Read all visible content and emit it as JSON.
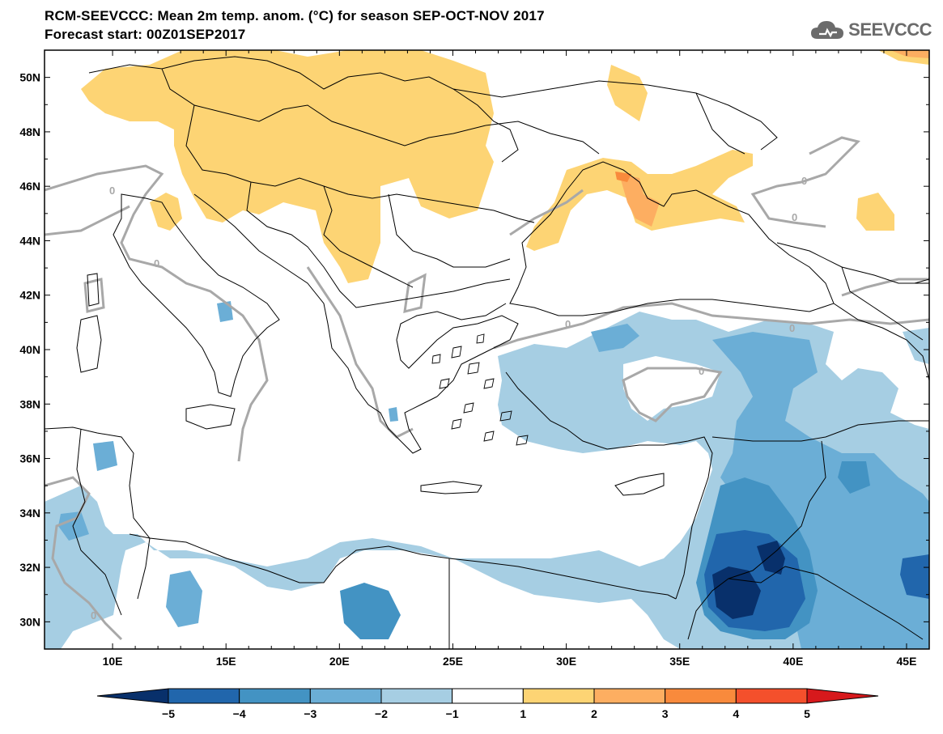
{
  "header": {
    "title_line1": "RCM-SEEVCCC: Mean 2m temp. anom. (°C) for season SEP-OCT-NOV 2017",
    "title_line2": "Forecast start: 00Z01SEP2017"
  },
  "logo": {
    "text": "SEEVCCC",
    "icon": "cloud-icon"
  },
  "map": {
    "lon_range": [
      7,
      46
    ],
    "lat_range": [
      29,
      51
    ],
    "lon_ticks": [
      "10E",
      "15E",
      "20E",
      "25E",
      "30E",
      "35E",
      "40E",
      "45E"
    ],
    "lat_ticks": [
      "50N",
      "48N",
      "46N",
      "44N",
      "42N",
      "40N",
      "38N",
      "36N",
      "34N",
      "32N",
      "30N"
    ],
    "contour_label": "0"
  },
  "colorbar": {
    "labels": [
      "-5",
      "-4",
      "-3",
      "-2",
      "-1",
      "1",
      "2",
      "3",
      "4",
      "5"
    ],
    "colors": [
      "#08306b",
      "#2166ac",
      "#4393c3",
      "#6baed6",
      "#a6cee3",
      "#ffffff",
      "#fdd474",
      "#fdae61",
      "#f98a3c",
      "#f4502c",
      "#d7191c"
    ]
  },
  "palette": {
    "warm1": "#fdd474",
    "warm2": "#fdae61",
    "cool1": "#a6cee3",
    "cool2": "#6baed6",
    "cool3": "#4393c3",
    "cool4": "#2166ac",
    "cool5": "#08306b",
    "contour": "#a8a8a8"
  }
}
